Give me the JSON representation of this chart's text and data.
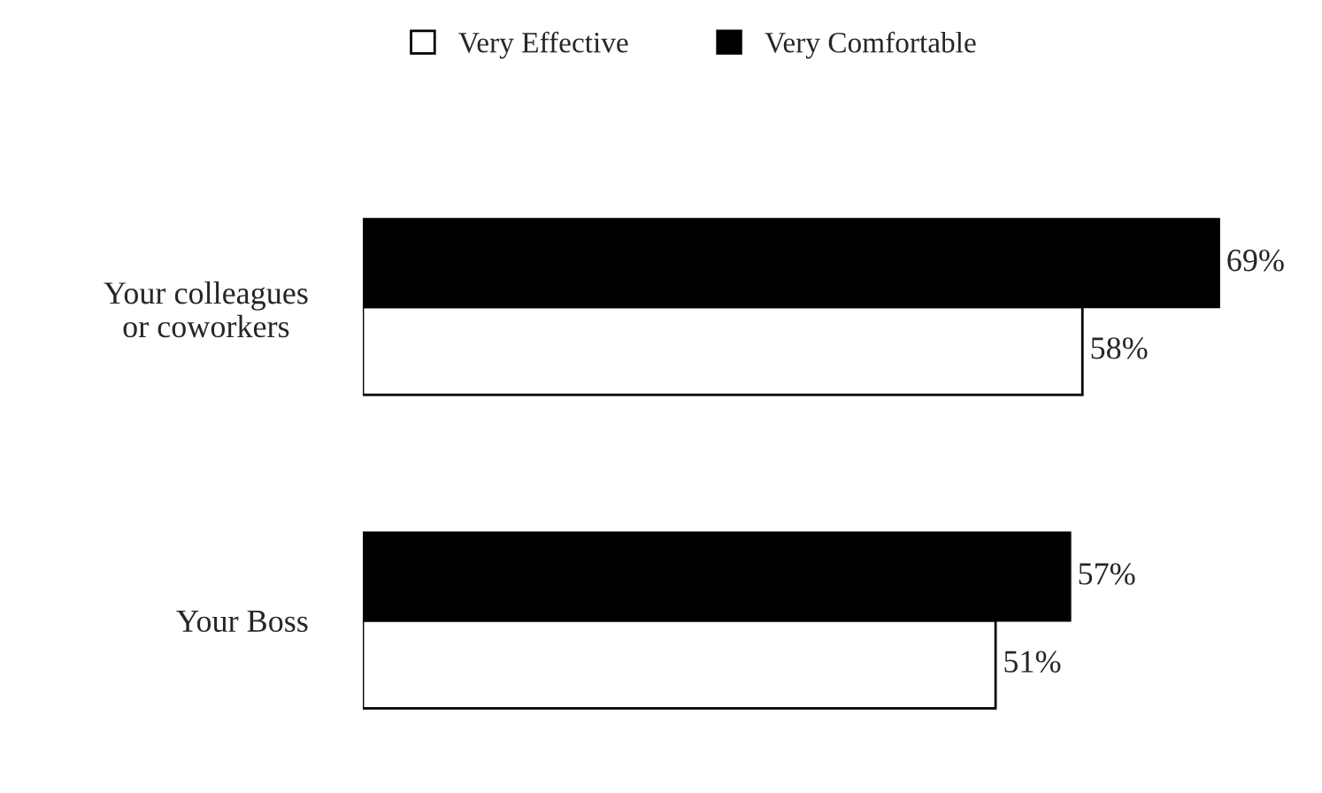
{
  "chart_data": {
    "type": "bar",
    "orientation": "horizontal",
    "categories": [
      "Your colleagues\nor coworkers",
      "Your Boss"
    ],
    "series": [
      {
        "name": "Very Effective",
        "color": "#ffffff",
        "values": [
          58,
          51
        ],
        "value_labels": [
          "58%",
          "51%"
        ]
      },
      {
        "name": "Very Comfortable",
        "color": "#000000",
        "values": [
          69,
          57
        ],
        "value_labels": [
          "69%",
          "57%"
        ]
      }
    ],
    "legend": "top",
    "grid": false,
    "tick_labels": "y"
  }
}
